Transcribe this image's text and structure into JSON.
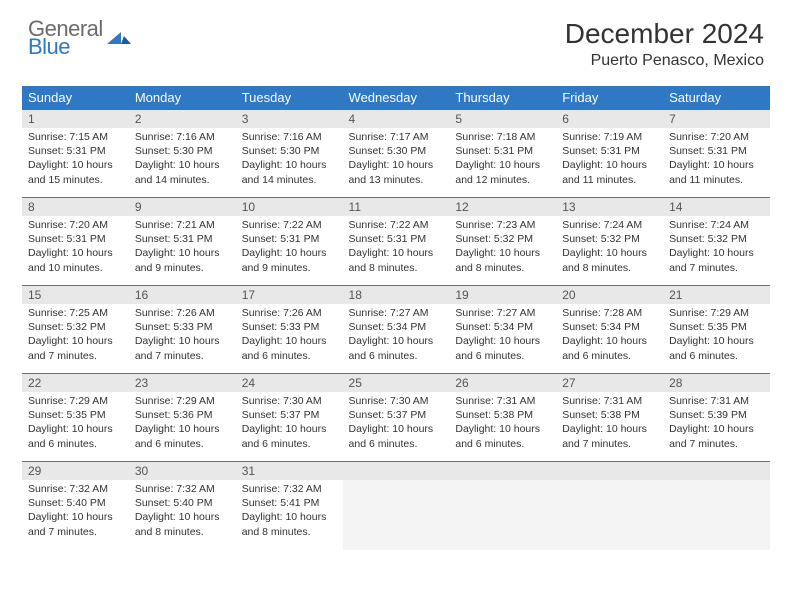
{
  "brand": {
    "line1": "General",
    "line2": "Blue"
  },
  "title": "December 2024",
  "location": "Puerto Penasco, Mexico",
  "colors": {
    "header_bg": "#2f78c4",
    "header_text": "#ffffff",
    "daynum_bg": "#e8e8e8",
    "border": "#2f78c4",
    "logo_gray": "#6b6b6b",
    "logo_blue": "#2f78c4"
  },
  "day_names": [
    "Sunday",
    "Monday",
    "Tuesday",
    "Wednesday",
    "Thursday",
    "Friday",
    "Saturday"
  ],
  "weeks": [
    [
      {
        "n": "1",
        "sr": "7:15 AM",
        "ss": "5:31 PM",
        "dl": "10 hours and 15 minutes."
      },
      {
        "n": "2",
        "sr": "7:16 AM",
        "ss": "5:30 PM",
        "dl": "10 hours and 14 minutes."
      },
      {
        "n": "3",
        "sr": "7:16 AM",
        "ss": "5:30 PM",
        "dl": "10 hours and 14 minutes."
      },
      {
        "n": "4",
        "sr": "7:17 AM",
        "ss": "5:30 PM",
        "dl": "10 hours and 13 minutes."
      },
      {
        "n": "5",
        "sr": "7:18 AM",
        "ss": "5:31 PM",
        "dl": "10 hours and 12 minutes."
      },
      {
        "n": "6",
        "sr": "7:19 AM",
        "ss": "5:31 PM",
        "dl": "10 hours and 11 minutes."
      },
      {
        "n": "7",
        "sr": "7:20 AM",
        "ss": "5:31 PM",
        "dl": "10 hours and 11 minutes."
      }
    ],
    [
      {
        "n": "8",
        "sr": "7:20 AM",
        "ss": "5:31 PM",
        "dl": "10 hours and 10 minutes."
      },
      {
        "n": "9",
        "sr": "7:21 AM",
        "ss": "5:31 PM",
        "dl": "10 hours and 9 minutes."
      },
      {
        "n": "10",
        "sr": "7:22 AM",
        "ss": "5:31 PM",
        "dl": "10 hours and 9 minutes."
      },
      {
        "n": "11",
        "sr": "7:22 AM",
        "ss": "5:31 PM",
        "dl": "10 hours and 8 minutes."
      },
      {
        "n": "12",
        "sr": "7:23 AM",
        "ss": "5:32 PM",
        "dl": "10 hours and 8 minutes."
      },
      {
        "n": "13",
        "sr": "7:24 AM",
        "ss": "5:32 PM",
        "dl": "10 hours and 8 minutes."
      },
      {
        "n": "14",
        "sr": "7:24 AM",
        "ss": "5:32 PM",
        "dl": "10 hours and 7 minutes."
      }
    ],
    [
      {
        "n": "15",
        "sr": "7:25 AM",
        "ss": "5:32 PM",
        "dl": "10 hours and 7 minutes."
      },
      {
        "n": "16",
        "sr": "7:26 AM",
        "ss": "5:33 PM",
        "dl": "10 hours and 7 minutes."
      },
      {
        "n": "17",
        "sr": "7:26 AM",
        "ss": "5:33 PM",
        "dl": "10 hours and 6 minutes."
      },
      {
        "n": "18",
        "sr": "7:27 AM",
        "ss": "5:34 PM",
        "dl": "10 hours and 6 minutes."
      },
      {
        "n": "19",
        "sr": "7:27 AM",
        "ss": "5:34 PM",
        "dl": "10 hours and 6 minutes."
      },
      {
        "n": "20",
        "sr": "7:28 AM",
        "ss": "5:34 PM",
        "dl": "10 hours and 6 minutes."
      },
      {
        "n": "21",
        "sr": "7:29 AM",
        "ss": "5:35 PM",
        "dl": "10 hours and 6 minutes."
      }
    ],
    [
      {
        "n": "22",
        "sr": "7:29 AM",
        "ss": "5:35 PM",
        "dl": "10 hours and 6 minutes."
      },
      {
        "n": "23",
        "sr": "7:29 AM",
        "ss": "5:36 PM",
        "dl": "10 hours and 6 minutes."
      },
      {
        "n": "24",
        "sr": "7:30 AM",
        "ss": "5:37 PM",
        "dl": "10 hours and 6 minutes."
      },
      {
        "n": "25",
        "sr": "7:30 AM",
        "ss": "5:37 PM",
        "dl": "10 hours and 6 minutes."
      },
      {
        "n": "26",
        "sr": "7:31 AM",
        "ss": "5:38 PM",
        "dl": "10 hours and 6 minutes."
      },
      {
        "n": "27",
        "sr": "7:31 AM",
        "ss": "5:38 PM",
        "dl": "10 hours and 7 minutes."
      },
      {
        "n": "28",
        "sr": "7:31 AM",
        "ss": "5:39 PM",
        "dl": "10 hours and 7 minutes."
      }
    ],
    [
      {
        "n": "29",
        "sr": "7:32 AM",
        "ss": "5:40 PM",
        "dl": "10 hours and 7 minutes."
      },
      {
        "n": "30",
        "sr": "7:32 AM",
        "ss": "5:40 PM",
        "dl": "10 hours and 8 minutes."
      },
      {
        "n": "31",
        "sr": "7:32 AM",
        "ss": "5:41 PM",
        "dl": "10 hours and 8 minutes."
      },
      null,
      null,
      null,
      null
    ]
  ],
  "labels": {
    "sunrise": "Sunrise:",
    "sunset": "Sunset:",
    "daylight": "Daylight:"
  }
}
